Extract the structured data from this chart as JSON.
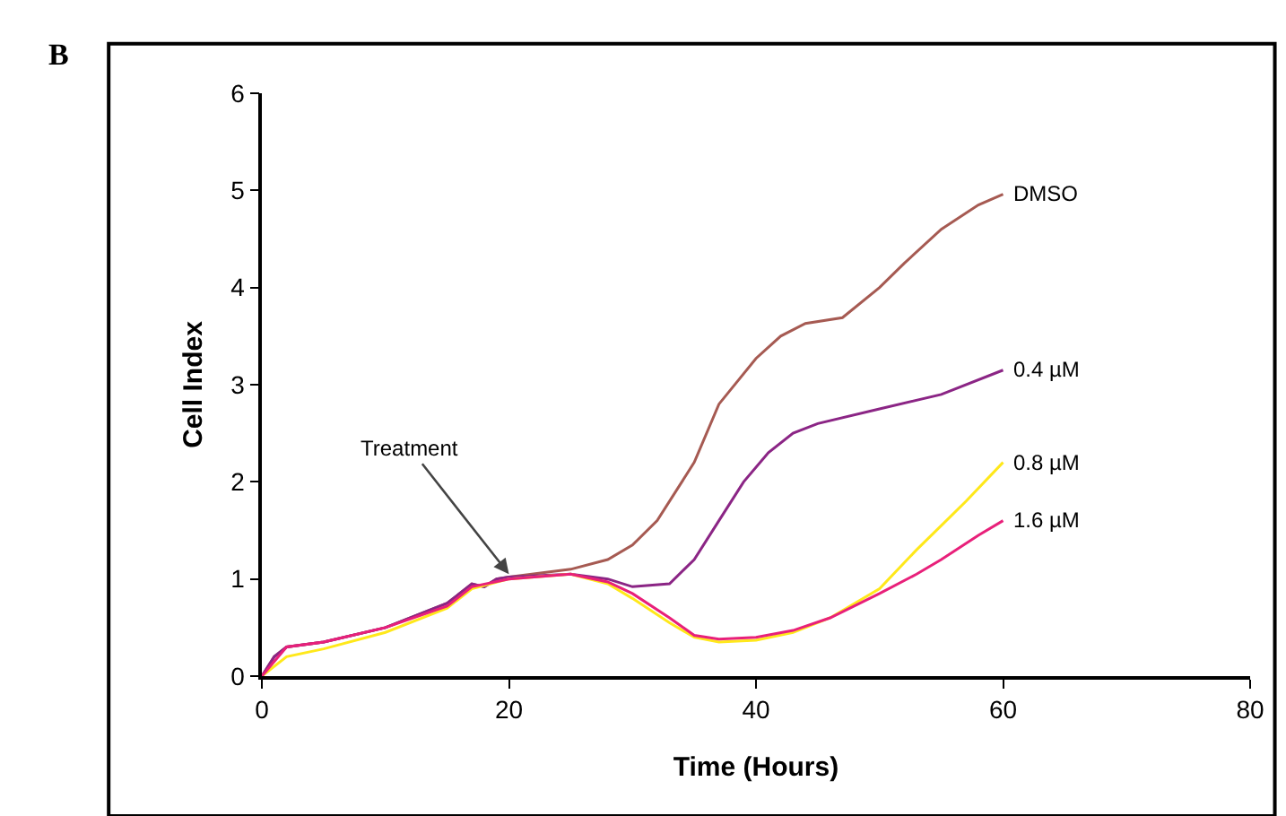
{
  "chart_data": {
    "type": "line",
    "xlabel": "Time (Hours)",
    "ylabel": "Cell Index",
    "xlim": [
      0,
      80
    ],
    "xticks": [
      0,
      20,
      40,
      60,
      80
    ],
    "ylim": [
      0,
      6
    ],
    "yticks": [
      0,
      1,
      2,
      3,
      4,
      5,
      6
    ],
    "grid": false,
    "legend": false,
    "marker": "none",
    "line_style": "solid",
    "annotations": [
      "B",
      {
        "text": "Treatment",
        "x": 20,
        "y": 1.05
      }
    ],
    "series": [
      {
        "name": "DMSO",
        "color": "#a65a52",
        "x": [
          0,
          1,
          2,
          5,
          10,
          15,
          17,
          18,
          19,
          20,
          25,
          28,
          30,
          32,
          35,
          37,
          40,
          42,
          44,
          47,
          50,
          52,
          55,
          58,
          60
        ],
        "values": [
          0,
          0.2,
          0.3,
          0.35,
          0.5,
          0.75,
          0.95,
          0.92,
          1.0,
          1.02,
          1.1,
          1.2,
          1.35,
          1.6,
          2.2,
          2.8,
          3.27,
          3.5,
          3.63,
          3.69,
          4.0,
          4.25,
          4.6,
          4.85,
          4.96
        ]
      },
      {
        "name": "0.4 µM",
        "color": "#8b2585",
        "x": [
          0,
          1,
          2,
          5,
          10,
          15,
          17,
          18,
          19,
          20,
          25,
          28,
          30,
          33,
          35,
          37,
          39,
          41,
          43,
          45,
          50,
          55,
          60
        ],
        "values": [
          0,
          0.2,
          0.3,
          0.35,
          0.5,
          0.75,
          0.95,
          0.92,
          1.0,
          1.02,
          1.05,
          1.0,
          0.92,
          0.95,
          1.2,
          1.6,
          2.0,
          2.3,
          2.5,
          2.6,
          2.75,
          2.9,
          3.15
        ]
      },
      {
        "name": "0.8 µM",
        "color": "#ffe81a",
        "x": [
          0,
          2,
          5,
          10,
          15,
          17,
          20,
          25,
          28,
          30,
          33,
          35,
          37,
          40,
          43,
          46,
          50,
          53,
          55,
          57,
          60
        ],
        "values": [
          0,
          0.2,
          0.28,
          0.45,
          0.7,
          0.9,
          1.0,
          1.05,
          0.95,
          0.8,
          0.55,
          0.4,
          0.35,
          0.37,
          0.45,
          0.6,
          0.9,
          1.3,
          1.55,
          1.8,
          2.2
        ]
      },
      {
        "name": "1.6 µM",
        "color": "#e8207a",
        "x": [
          0,
          2,
          5,
          10,
          15,
          17,
          20,
          25,
          28,
          30,
          33,
          35,
          37,
          40,
          43,
          46,
          50,
          53,
          55,
          58,
          60
        ],
        "values": [
          0,
          0.3,
          0.35,
          0.5,
          0.72,
          0.92,
          1.0,
          1.05,
          0.97,
          0.85,
          0.6,
          0.42,
          0.38,
          0.4,
          0.47,
          0.6,
          0.85,
          1.05,
          1.2,
          1.45,
          1.6
        ]
      }
    ]
  }
}
